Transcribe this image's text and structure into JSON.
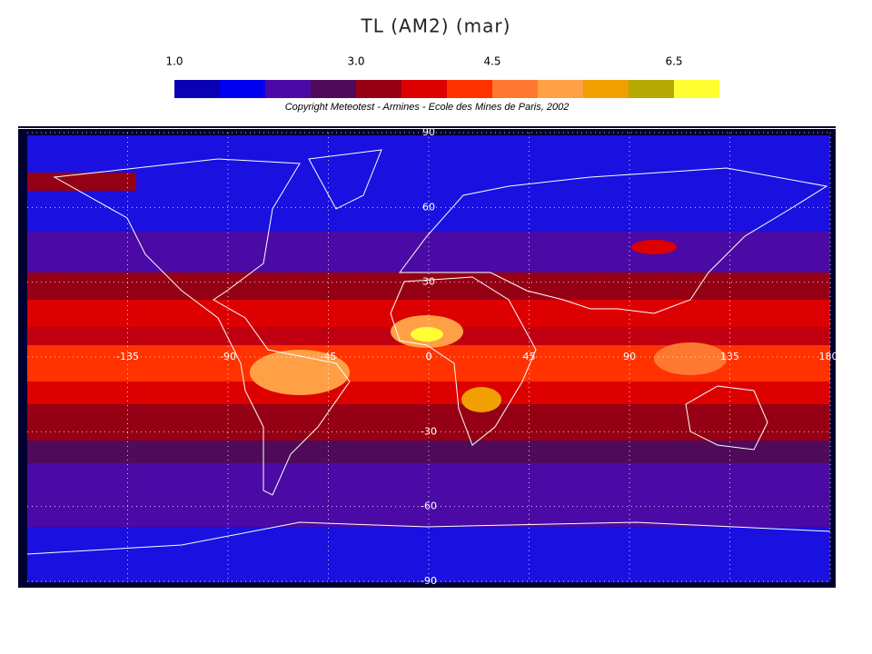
{
  "header": {
    "title": "TL (AM2)   (mar)",
    "copyright": "Copyright Meteotest - Armines - Ecole des Mines de Paris, 2002"
  },
  "colorbar": {
    "range": [
      1,
      7
    ],
    "colors": [
      "#0a00b4",
      "#0000f0",
      "#4b0aa5",
      "#500a5a",
      "#960014",
      "#dc0000",
      "#ff3200",
      "#ff7832",
      "#ffa046",
      "#f0a000",
      "#b4aa00",
      "#ffff32"
    ],
    "ticks": [
      {
        "value": 1,
        "label": "1.0"
      },
      {
        "value": 3,
        "label": "3.0"
      },
      {
        "value": 4.5,
        "label": "4.5"
      },
      {
        "value": 6.5,
        "label": "6.5"
      }
    ]
  },
  "map": {
    "xlim": [
      -180,
      180
    ],
    "ylim": [
      -90,
      90
    ],
    "lon_ticks": [
      -135,
      -90,
      -45,
      0,
      45,
      90,
      135,
      180
    ],
    "lat_ticks": [
      90,
      60,
      30,
      0,
      -30,
      -60,
      -90
    ]
  }
}
